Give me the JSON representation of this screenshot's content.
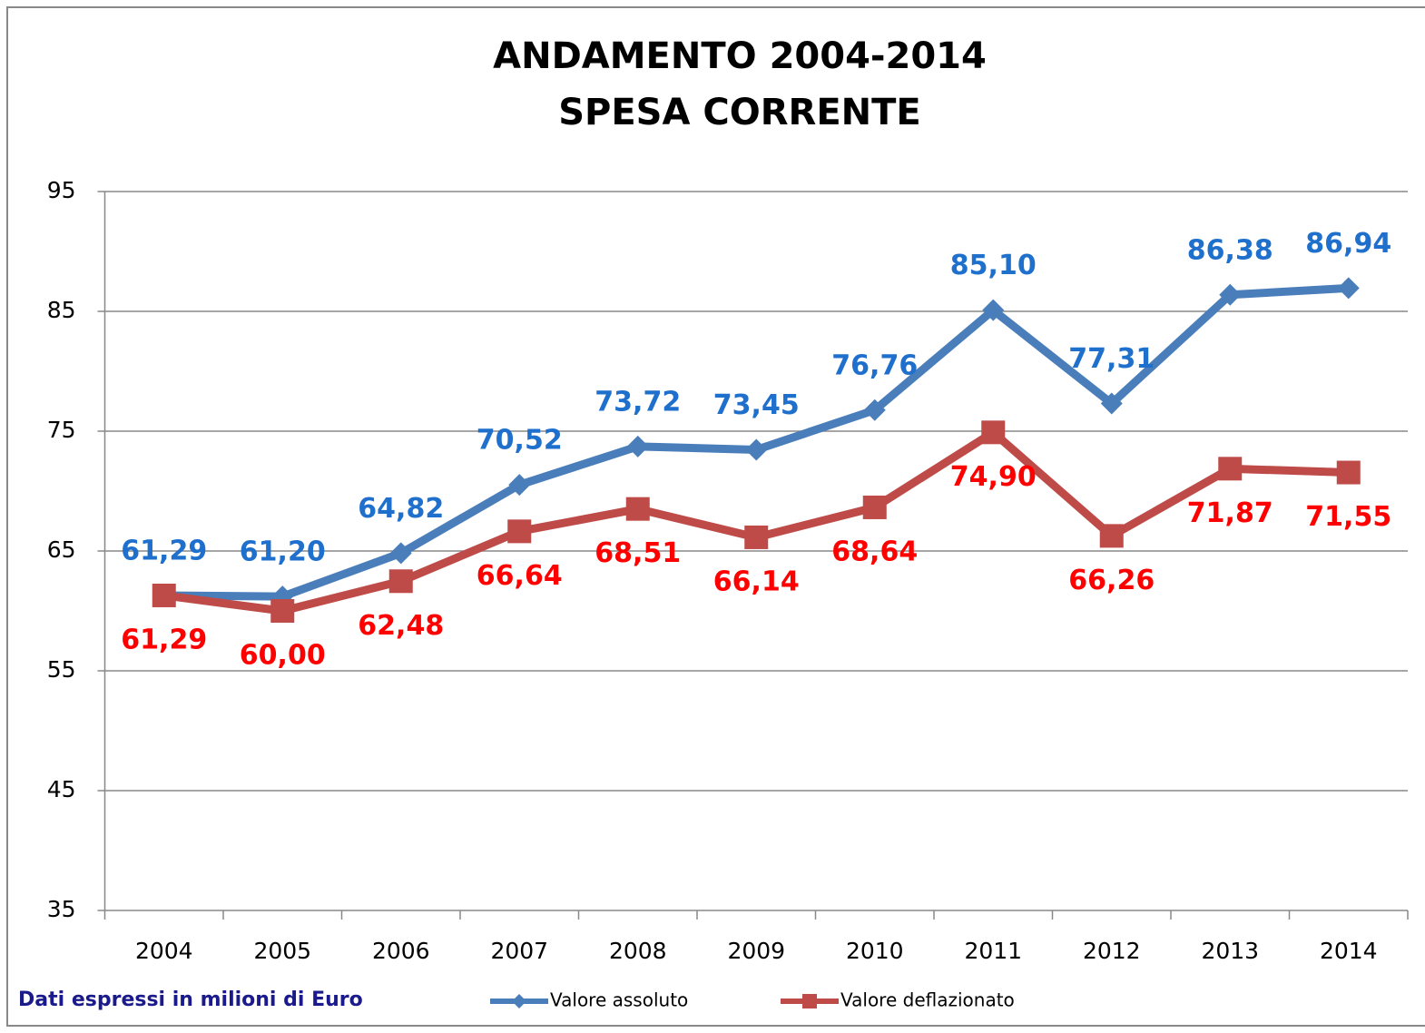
{
  "chart_data": {
    "type": "line",
    "title": "ANDAMENTO 2004-2014",
    "subtitle": "SPESA CORRENTE",
    "footnote": "Dati  espressi in milioni di Euro",
    "categories": [
      "2004",
      "2005",
      "2006",
      "2007",
      "2008",
      "2009",
      "2010",
      "2011",
      "2012",
      "2013",
      "2014"
    ],
    "series": [
      {
        "name": "Valore assoluto",
        "color": "#4a7ebb",
        "label_color": "#1f6fcc",
        "marker": "diamond",
        "label_position": "above",
        "values": [
          61.29,
          61.2,
          64.82,
          70.52,
          73.72,
          73.45,
          76.76,
          85.1,
          77.31,
          86.38,
          86.94
        ],
        "value_labels": [
          "61,29",
          "61,20",
          "64,82",
          "70,52",
          "73,72",
          "73,45",
          "76,76",
          "85,10",
          "77,31",
          "86,38",
          "86,94"
        ]
      },
      {
        "name": "Valore deflazionato",
        "color": "#be4b48",
        "label_color": "#ff0000",
        "marker": "square",
        "label_position": "below",
        "values": [
          61.29,
          60.0,
          62.48,
          66.64,
          68.51,
          66.14,
          68.64,
          74.9,
          66.26,
          71.87,
          71.55
        ],
        "value_labels": [
          "61,29",
          "60,00",
          "62,48",
          "66,64",
          "68,51",
          "66,14",
          "68,64",
          "74,90",
          "66,26",
          "71,87",
          "71,55"
        ]
      }
    ],
    "ylim": [
      35,
      95
    ],
    "yticks": [
      35,
      45,
      55,
      65,
      75,
      85,
      95
    ],
    "grid": true
  }
}
